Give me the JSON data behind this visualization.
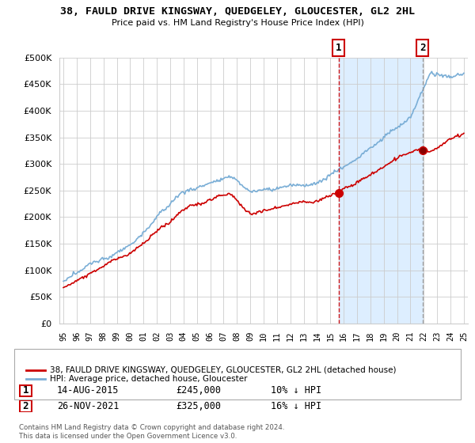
{
  "title": "38, FAULD DRIVE KINGSWAY, QUEDGELEY, GLOUCESTER, GL2 2HL",
  "subtitle": "Price paid vs. HM Land Registry's House Price Index (HPI)",
  "legend_line1": "38, FAULD DRIVE KINGSWAY, QUEDGELEY, GLOUCESTER, GL2 2HL (detached house)",
  "legend_line2": "HPI: Average price, detached house, Gloucester",
  "footer": "Contains HM Land Registry data © Crown copyright and database right 2024.\nThis data is licensed under the Open Government Licence v3.0.",
  "ann1_date": "14-AUG-2015",
  "ann1_price": "£245,000",
  "ann1_hpi": "10% ↓ HPI",
  "ann2_date": "26-NOV-2021",
  "ann2_price": "£325,000",
  "ann2_hpi": "16% ↓ HPI",
  "vline1_x": 2015.62,
  "vline2_x": 2021.9,
  "sale1_x": 2015.62,
  "sale1_y": 245000,
  "sale2_x": 2021.9,
  "sale2_y": 325000,
  "red_color": "#cc0000",
  "blue_color": "#7aaed6",
  "shade_color": "#ddeeff",
  "ylim": [
    0,
    500000
  ],
  "xlim": [
    1994.7,
    2025.3
  ],
  "background_color": "#ffffff",
  "grid_color": "#cccccc"
}
